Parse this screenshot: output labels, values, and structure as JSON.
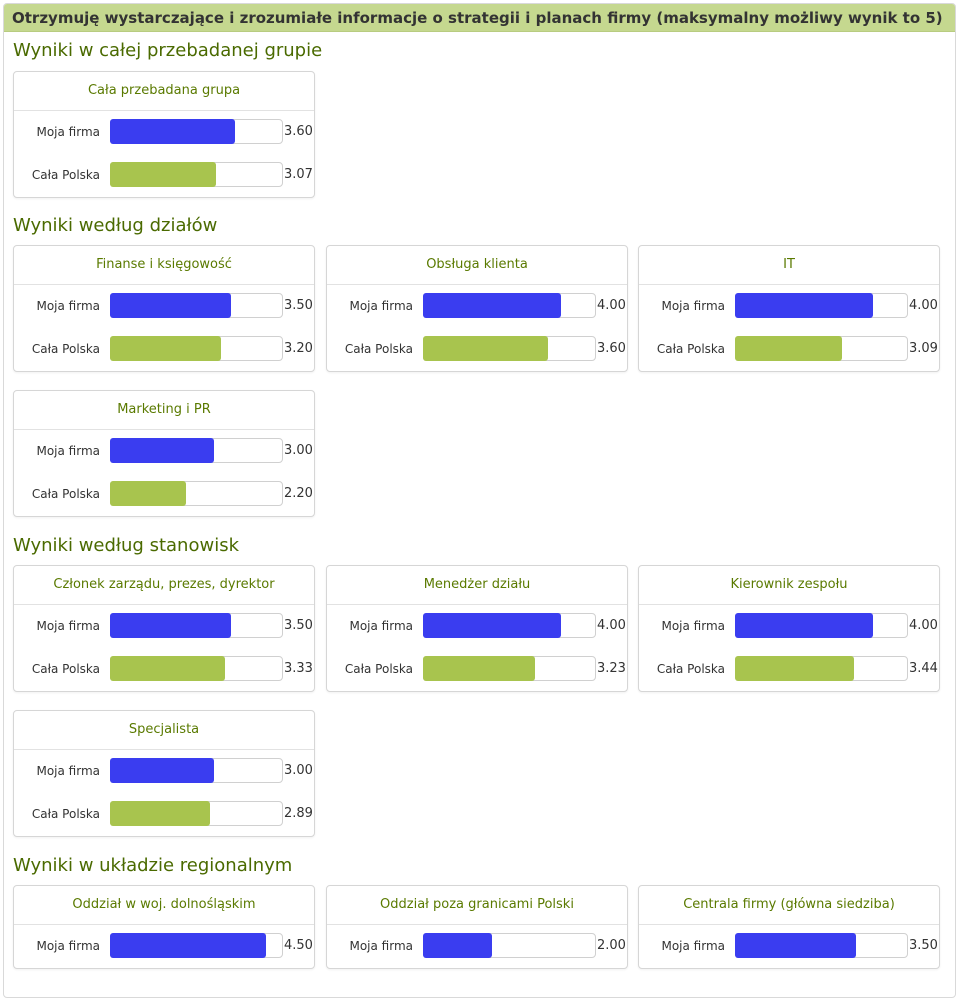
{
  "header": {
    "title": "Otrzymuję wystarczające i zrozumiałe informacje o strategii i planach firmy (maksymalny możliwy wynik to 5)"
  },
  "colors": {
    "own_company": "#3a3df0",
    "poland": "#a8c44e",
    "accent": "#c5d88f"
  },
  "chart_data": {
    "type": "bar",
    "xlim": [
      0,
      5
    ],
    "sections": [
      {
        "title": "Wyniki w całej przebadanej grupie",
        "groups": [
          {
            "name": "Cała przebadana grupa",
            "rows": [
              {
                "label": "Moja firma",
                "value": 3.6,
                "display": "3.60"
              },
              {
                "label": "Cała Polska",
                "value": 3.07,
                "display": "3.07"
              }
            ]
          }
        ]
      },
      {
        "title": "Wyniki według działów",
        "groups": [
          {
            "name": "Finanse i księgowość",
            "rows": [
              {
                "label": "Moja firma",
                "value": 3.5,
                "display": "3.50"
              },
              {
                "label": "Cała Polska",
                "value": 3.2,
                "display": "3.20"
              }
            ]
          },
          {
            "name": "Obsługa klienta",
            "rows": [
              {
                "label": "Moja firma",
                "value": 4.0,
                "display": "4.00"
              },
              {
                "label": "Cała Polska",
                "value": 3.6,
                "display": "3.60"
              }
            ]
          },
          {
            "name": "IT",
            "rows": [
              {
                "label": "Moja firma",
                "value": 4.0,
                "display": "4.00"
              },
              {
                "label": "Cała Polska",
                "value": 3.09,
                "display": "3.09"
              }
            ]
          },
          {
            "name": "Marketing i PR",
            "rows": [
              {
                "label": "Moja firma",
                "value": 3.0,
                "display": "3.00"
              },
              {
                "label": "Cała Polska",
                "value": 2.2,
                "display": "2.20"
              }
            ]
          }
        ]
      },
      {
        "title": "Wyniki według stanowisk",
        "groups": [
          {
            "name": "Członek zarządu, prezes, dyrektor",
            "rows": [
              {
                "label": "Moja firma",
                "value": 3.5,
                "display": "3.50"
              },
              {
                "label": "Cała Polska",
                "value": 3.33,
                "display": "3.33"
              }
            ]
          },
          {
            "name": "Menedżer działu",
            "rows": [
              {
                "label": "Moja firma",
                "value": 4.0,
                "display": "4.00"
              },
              {
                "label": "Cała Polska",
                "value": 3.23,
                "display": "3.23"
              }
            ]
          },
          {
            "name": "Kierownik zespołu",
            "rows": [
              {
                "label": "Moja firma",
                "value": 4.0,
                "display": "4.00"
              },
              {
                "label": "Cała Polska",
                "value": 3.44,
                "display": "3.44"
              }
            ]
          },
          {
            "name": "Specjalista",
            "rows": [
              {
                "label": "Moja firma",
                "value": 3.0,
                "display": "3.00"
              },
              {
                "label": "Cała Polska",
                "value": 2.89,
                "display": "2.89"
              }
            ]
          }
        ]
      },
      {
        "title": "Wyniki w układzie regionalnym",
        "groups": [
          {
            "name": "Oddział w woj. dolnośląskim",
            "rows": [
              {
                "label": "Moja firma",
                "value": 4.5,
                "display": "4.50"
              }
            ]
          },
          {
            "name": "Oddział poza granicami Polski",
            "rows": [
              {
                "label": "Moja firma",
                "value": 2.0,
                "display": "2.00"
              }
            ]
          },
          {
            "name": "Centrala firmy (główna siedziba)",
            "rows": [
              {
                "label": "Moja firma",
                "value": 3.5,
                "display": "3.50"
              }
            ]
          }
        ]
      }
    ]
  }
}
